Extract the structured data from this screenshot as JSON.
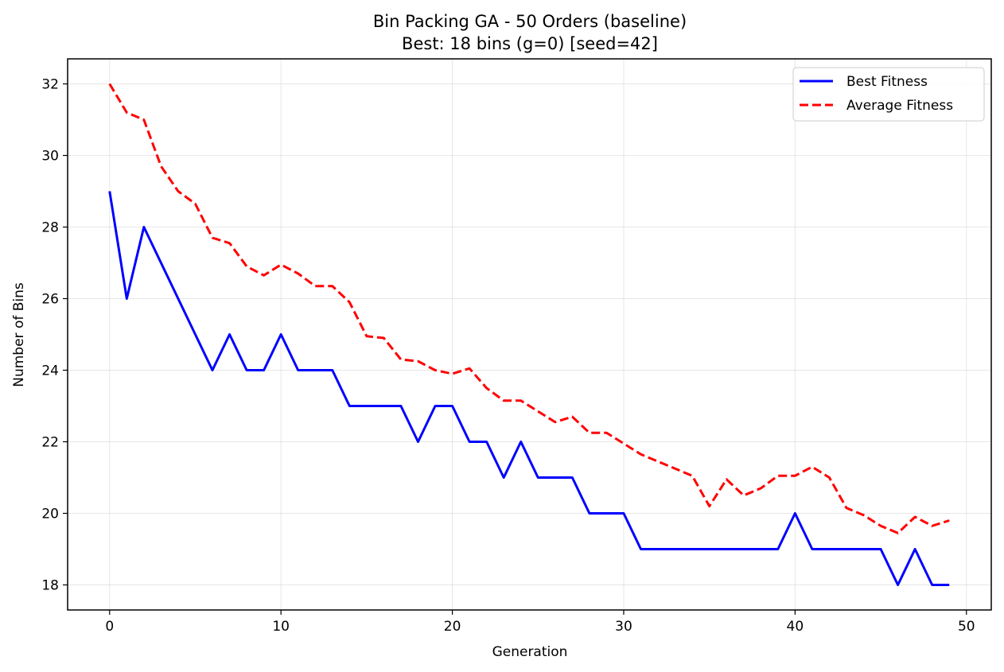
{
  "chart_data": {
    "type": "line",
    "title": "Bin Packing GA - 50 Orders (baseline)",
    "subtitle": "Best: 18 bins (g=0) [seed=42]",
    "xlabel": "Generation",
    "ylabel": "Number of Bins",
    "xlim": [
      -2.45,
      51.45
    ],
    "ylim": [
      17.3,
      32.7
    ],
    "xticks": [
      0,
      10,
      20,
      30,
      40,
      50
    ],
    "yticks": [
      18,
      20,
      22,
      24,
      26,
      28,
      30,
      32
    ],
    "grid": true,
    "legend_position": "top-right",
    "x": [
      0,
      1,
      2,
      3,
      4,
      5,
      6,
      7,
      8,
      9,
      10,
      11,
      12,
      13,
      14,
      15,
      16,
      17,
      18,
      19,
      20,
      21,
      22,
      23,
      24,
      25,
      26,
      27,
      28,
      29,
      30,
      31,
      32,
      33,
      34,
      35,
      36,
      37,
      38,
      39,
      40,
      41,
      42,
      43,
      44,
      45,
      46,
      47,
      48,
      49
    ],
    "series": [
      {
        "name": "Best Fitness",
        "color": "#0000ff",
        "style": "solid",
        "values": [
          29,
          26,
          28,
          27,
          26,
          25,
          24,
          25,
          24,
          24,
          25,
          24,
          24,
          24,
          23,
          23,
          23,
          23,
          22,
          23,
          23,
          22,
          22,
          21,
          22,
          21,
          21,
          21,
          20,
          20,
          20,
          19,
          19,
          19,
          19,
          19,
          19,
          19,
          19,
          19,
          20,
          19,
          19,
          19,
          19,
          19,
          18,
          19,
          18,
          18
        ]
      },
      {
        "name": "Average Fitness",
        "color": "#ff0000",
        "style": "dashed",
        "values": [
          32.0,
          31.2,
          31.0,
          29.7,
          29.0,
          28.65,
          27.7,
          27.55,
          26.9,
          26.65,
          26.95,
          26.7,
          26.35,
          26.35,
          25.9,
          24.95,
          24.9,
          24.3,
          24.25,
          24.0,
          23.9,
          24.05,
          23.5,
          23.15,
          23.15,
          22.85,
          22.55,
          22.7,
          22.25,
          22.25,
          21.95,
          21.65,
          21.45,
          21.25,
          21.05,
          20.2,
          20.95,
          20.5,
          20.7,
          21.05,
          21.05,
          21.3,
          21.0,
          20.15,
          19.95,
          19.65,
          19.45,
          19.9,
          19.65,
          19.8
        ]
      }
    ]
  }
}
